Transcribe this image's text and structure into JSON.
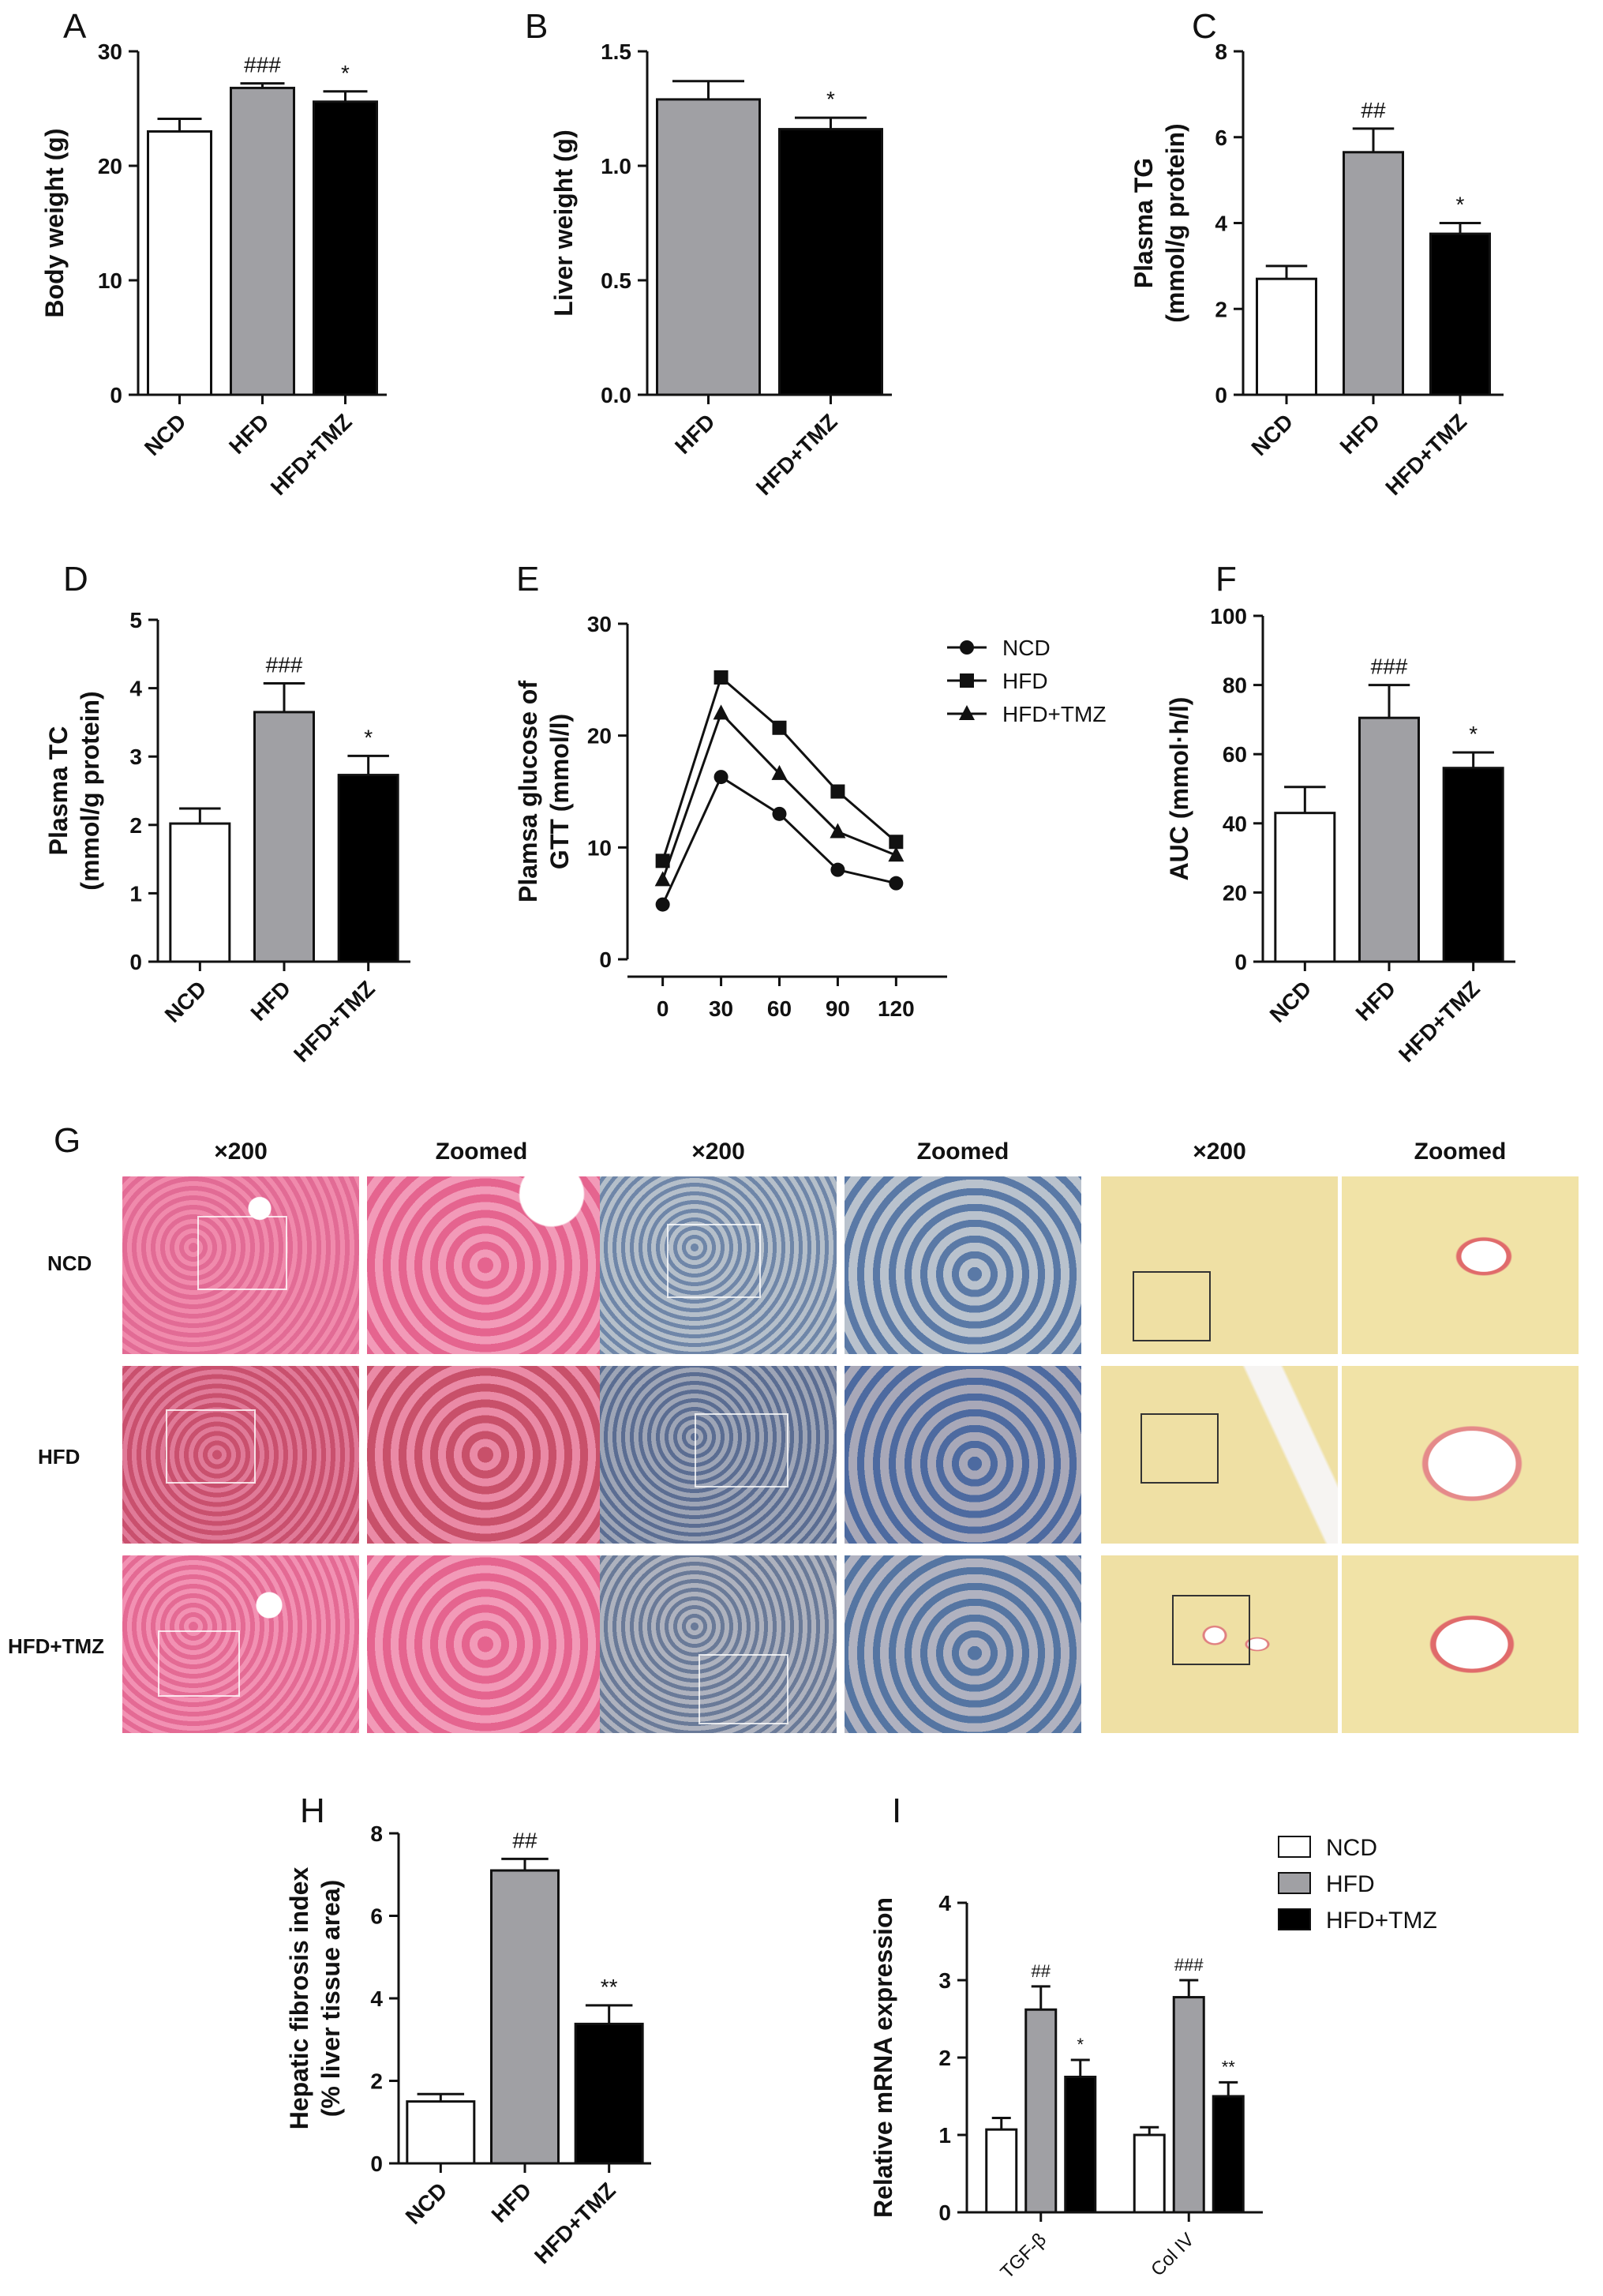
{
  "figure": {
    "panels": {
      "A": {
        "label": "A"
      },
      "B": {
        "label": "B"
      },
      "C": {
        "label": "C"
      },
      "D": {
        "label": "D"
      },
      "E": {
        "label": "E"
      },
      "F": {
        "label": "F"
      },
      "G": {
        "label": "G"
      },
      "H": {
        "label": "H"
      },
      "I": {
        "label": "I"
      }
    },
    "histology": {
      "col_headers": [
        "×200",
        "Zoomed",
        "×200",
        "Zoomed",
        "×200",
        "Zoomed"
      ],
      "row_labels": [
        "NCD",
        "HFD",
        "HFD+TMZ"
      ],
      "stain_colors": {
        "he": "#e8709a",
        "oil_red": "#8fa2b8",
        "sirius": "#efe0a0"
      }
    }
  },
  "chart_data": [
    {
      "id": "A",
      "type": "bar",
      "categories": [
        "NCD",
        "HFD",
        "HFD+TMZ"
      ],
      "values": [
        23.0,
        26.8,
        25.6
      ],
      "errors": [
        1.1,
        0.4,
        0.9
      ],
      "annotations": [
        "",
        "###",
        "*"
      ],
      "ylabel": "Body weight (g)",
      "ylim": [
        0,
        30
      ],
      "yticks": [
        0,
        10,
        20,
        30
      ],
      "colors": [
        "#ffffff",
        "#a0a0a4",
        "#000000"
      ]
    },
    {
      "id": "B",
      "type": "bar",
      "categories": [
        "HFD",
        "HFD+TMZ"
      ],
      "values": [
        1.29,
        1.16
      ],
      "errors": [
        0.08,
        0.05
      ],
      "annotations": [
        "",
        "*"
      ],
      "ylabel": "Liver weight (g)",
      "ylim": [
        0,
        1.5
      ],
      "yticks": [
        "0.0",
        "0.5",
        "1.0",
        "1.5"
      ],
      "colors": [
        "#a0a0a4",
        "#000000"
      ]
    },
    {
      "id": "C",
      "type": "bar",
      "categories": [
        "NCD",
        "HFD",
        "HFD+TMZ"
      ],
      "values": [
        2.7,
        5.65,
        3.75
      ],
      "errors": [
        0.3,
        0.55,
        0.25
      ],
      "annotations": [
        "",
        "##",
        "*"
      ],
      "ylabel_lines": [
        "Plasma TG",
        "(mmol/g protein)"
      ],
      "ylim": [
        0,
        8
      ],
      "yticks": [
        0,
        2,
        4,
        6,
        8
      ],
      "colors": [
        "#ffffff",
        "#a0a0a4",
        "#000000"
      ]
    },
    {
      "id": "D",
      "type": "bar",
      "categories": [
        "NCD",
        "HFD",
        "HFD+TMZ"
      ],
      "values": [
        2.02,
        3.65,
        2.73
      ],
      "errors": [
        0.22,
        0.42,
        0.28
      ],
      "annotations": [
        "",
        "###",
        "*"
      ],
      "ylabel_lines": [
        "Plasma TC",
        "(mmol/g protein)"
      ],
      "ylim": [
        0,
        5
      ],
      "yticks": [
        0,
        1,
        2,
        3,
        4,
        5
      ],
      "colors": [
        "#ffffff",
        "#a0a0a4",
        "#000000"
      ]
    },
    {
      "id": "E",
      "type": "line",
      "x": [
        0,
        30,
        60,
        90,
        120
      ],
      "series": [
        {
          "name": "NCD",
          "marker": "circle",
          "values": [
            4.9,
            16.3,
            13.0,
            8.0,
            6.8
          ]
        },
        {
          "name": "HFD",
          "marker": "square",
          "values": [
            8.8,
            25.2,
            20.7,
            15.0,
            10.5
          ]
        },
        {
          "name": "HFD+TMZ",
          "marker": "triangle",
          "values": [
            7.1,
            22.0,
            16.6,
            11.4,
            9.3
          ]
        }
      ],
      "ylabel_lines": [
        "Plamsa glucose of",
        "GTT (mmol/l)"
      ],
      "ylim": [
        0,
        30
      ],
      "yticks": [
        0,
        10,
        20,
        30
      ],
      "xticks": [
        0,
        30,
        60,
        90,
        120
      ],
      "legend": "top-right"
    },
    {
      "id": "F",
      "type": "bar",
      "categories": [
        "NCD",
        "HFD",
        "HFD+TMZ"
      ],
      "values": [
        43,
        70.5,
        56
      ],
      "errors": [
        7.5,
        9.5,
        4.5
      ],
      "annotations": [
        "",
        "###",
        "*"
      ],
      "ylabel": "AUC (mmol·h/l)",
      "ylim": [
        0,
        100
      ],
      "yticks": [
        0,
        20,
        40,
        60,
        80,
        100
      ],
      "colors": [
        "#ffffff",
        "#a0a0a4",
        "#000000"
      ]
    },
    {
      "id": "H",
      "type": "bar",
      "categories": [
        "NCD",
        "HFD",
        "HFD+TMZ"
      ],
      "values": [
        1.5,
        7.1,
        3.38
      ],
      "errors": [
        0.18,
        0.28,
        0.45
      ],
      "annotations": [
        "",
        "##",
        "**"
      ],
      "ylabel_lines": [
        "Hepatic fibrosis index",
        "(% liver tissue area)"
      ],
      "ylim": [
        0,
        8
      ],
      "yticks": [
        0,
        2,
        4,
        6,
        8
      ],
      "colors": [
        "#ffffff",
        "#a0a0a4",
        "#000000"
      ]
    },
    {
      "id": "I",
      "type": "bar",
      "categories": [
        "TGF-β",
        "Col IV"
      ],
      "series": [
        {
          "name": "NCD",
          "values": [
            1.07,
            1.0
          ],
          "errors": [
            0.15,
            0.1
          ],
          "annotations": [
            "",
            ""
          ]
        },
        {
          "name": "HFD",
          "values": [
            2.62,
            2.78
          ],
          "errors": [
            0.3,
            0.22
          ],
          "annotations": [
            "##",
            "###"
          ]
        },
        {
          "name": "HFD+TMZ",
          "values": [
            1.75,
            1.5
          ],
          "errors": [
            0.22,
            0.18
          ],
          "annotations": [
            "*",
            "**"
          ]
        }
      ],
      "ylabel": "Relative mRNA  expression",
      "ylim": [
        0,
        4
      ],
      "yticks": [
        0,
        1,
        2,
        3,
        4
      ],
      "colors": [
        "#ffffff",
        "#a0a0a4",
        "#000000"
      ],
      "legend": "top-right"
    }
  ]
}
